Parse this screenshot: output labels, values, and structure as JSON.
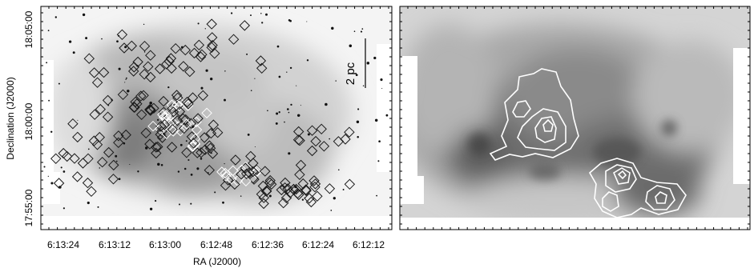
{
  "figure": {
    "left_panel": {
      "ylabel": "Declination (J2000)",
      "xlabel": "RA (J2000)",
      "ytick_labels": [
        "18:05:00",
        "18:00:00",
        "17:55:00"
      ],
      "xtick_labels": [
        "6:13:24",
        "6:13:12",
        "6:13:00",
        "6:12:48",
        "6:12:36",
        "6:12:24",
        "6:12:12"
      ],
      "scale_bar_label": "2 pc"
    },
    "right_panel": {}
  },
  "colors": {
    "frame": "#000000",
    "sky_light": "#f2f2f2",
    "nebula_mid": "#9a9a9a",
    "nebula_dark": "#555555",
    "markers_dark": "#1a1a1a",
    "markers_light": "#ffffff",
    "contours": "#ffffff"
  }
}
